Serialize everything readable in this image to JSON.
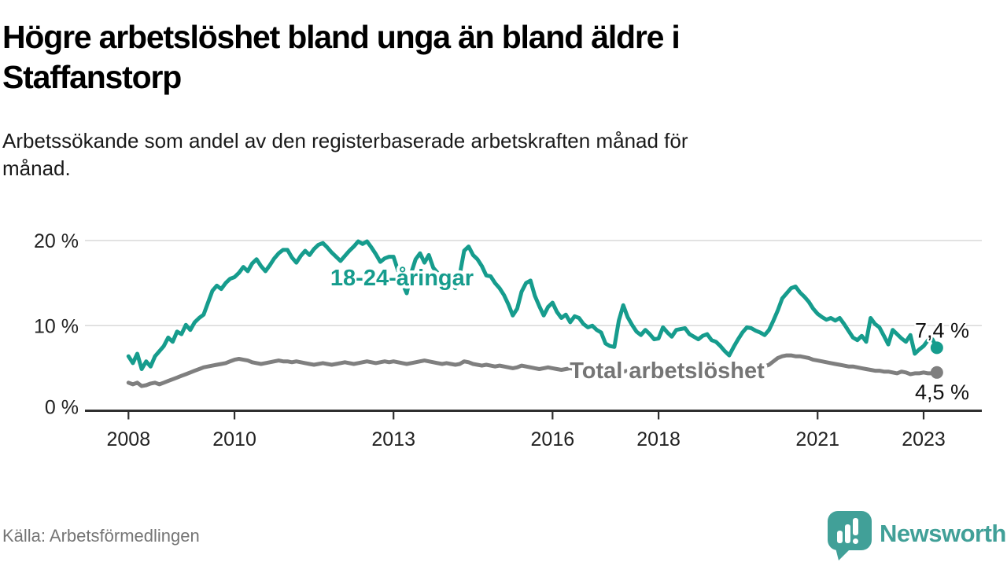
{
  "header": {
    "title": "Högre arbetslöshet bland unga än bland äldre i\nStaffanstorp",
    "subtitle": "Arbetssökande som andel av den registerbaserade arbetskraften månad för\nmånad."
  },
  "footer": {
    "source": "Källa: Arbetsförmedlingen",
    "brand": "Newsworthy",
    "brand_color": "#41a098"
  },
  "colors": {
    "young_line": "#169c8d",
    "total_line": "#7f7f7f",
    "total_label": "#757575",
    "grid": "#d9d9d9",
    "axis": "#2f2f2f",
    "tick_text": "#222222",
    "value_text": "#111111"
  },
  "chart_data": {
    "type": "line",
    "title": "Högre arbetslöshet bland unga än bland äldre i Staffanstorp",
    "xlabel": "",
    "ylabel": "Arbetssökande som andel av den registerbaserade arbetskraften",
    "x_unit": "month",
    "x_start": {
      "year": 2008,
      "month": 1
    },
    "x_end": {
      "year": 2023,
      "month": 4
    },
    "x_ticks": [
      {
        "year": 2008,
        "label": "2008"
      },
      {
        "year": 2010,
        "label": "2010"
      },
      {
        "year": 2013,
        "label": "2013"
      },
      {
        "year": 2016,
        "label": "2016"
      },
      {
        "year": 2018,
        "label": "2018"
      },
      {
        "year": 2021,
        "label": "2021"
      },
      {
        "year": 2023,
        "label": "2023"
      }
    ],
    "y_ticks": [
      {
        "value": 20,
        "label": "20 %"
      },
      {
        "value": 10,
        "label": "10 %"
      },
      {
        "value": 0,
        "label": "0 %"
      }
    ],
    "ylim": [
      0,
      21.5
    ],
    "grid": "horizontal",
    "legend_position": "inline-labels",
    "series": [
      {
        "id": "total",
        "name": "Total arbetslöshet",
        "color": "#7f7f7f",
        "label_color": "#757575",
        "end_label": "4,5 %",
        "end_value": 4.5,
        "values": [
          3.3,
          3.1,
          3.3,
          2.9,
          3.0,
          3.2,
          3.3,
          3.1,
          3.3,
          3.5,
          3.7,
          3.9,
          4.1,
          4.3,
          4.5,
          4.7,
          4.9,
          5.1,
          5.2,
          5.3,
          5.4,
          5.5,
          5.6,
          5.8,
          6.0,
          6.1,
          6.0,
          5.9,
          5.7,
          5.6,
          5.5,
          5.6,
          5.7,
          5.8,
          5.9,
          5.8,
          5.8,
          5.7,
          5.8,
          5.7,
          5.6,
          5.5,
          5.4,
          5.5,
          5.6,
          5.5,
          5.4,
          5.5,
          5.6,
          5.7,
          5.6,
          5.5,
          5.6,
          5.7,
          5.8,
          5.7,
          5.6,
          5.7,
          5.8,
          5.7,
          5.8,
          5.7,
          5.6,
          5.5,
          5.6,
          5.7,
          5.8,
          5.9,
          5.8,
          5.7,
          5.6,
          5.5,
          5.6,
          5.5,
          5.4,
          5.5,
          5.8,
          5.7,
          5.5,
          5.4,
          5.3,
          5.4,
          5.3,
          5.2,
          5.3,
          5.2,
          5.1,
          5.0,
          5.1,
          5.3,
          5.2,
          5.1,
          5.0,
          4.9,
          5.0,
          5.1,
          5.0,
          4.9,
          4.8,
          4.9,
          5.0,
          4.9,
          4.8,
          4.9,
          4.8,
          4.7,
          4.8,
          4.7,
          4.8,
          4.7,
          4.6,
          4.7,
          4.6,
          4.7,
          4.8,
          4.7,
          4.6,
          4.7,
          4.6,
          4.7,
          4.6,
          4.7,
          4.6,
          4.5,
          4.6,
          4.7,
          4.6,
          4.5,
          4.6,
          4.5,
          4.6,
          4.5,
          4.5,
          4.4,
          4.5,
          4.6,
          4.7,
          4.6,
          4.7,
          4.8,
          4.7,
          4.8,
          4.9,
          5.0,
          5.2,
          5.4,
          5.8,
          6.2,
          6.4,
          6.5,
          6.5,
          6.4,
          6.4,
          6.3,
          6.2,
          6.0,
          5.9,
          5.8,
          5.7,
          5.6,
          5.5,
          5.4,
          5.3,
          5.2,
          5.2,
          5.1,
          5.0,
          4.9,
          4.8,
          4.7,
          4.7,
          4.6,
          4.6,
          4.5,
          4.4,
          4.6,
          4.5,
          4.3,
          4.4,
          4.4,
          4.5,
          4.4,
          4.4,
          4.5
        ]
      },
      {
        "id": "young",
        "name": "18-24-åringar",
        "color": "#169c8d",
        "label_color": "#169c8d",
        "end_label": "7,4 %",
        "end_value": 7.4,
        "values": [
          6.4,
          5.6,
          6.7,
          4.9,
          5.8,
          5.2,
          6.4,
          7.0,
          7.6,
          8.6,
          8.1,
          9.3,
          9.0,
          10.1,
          9.5,
          10.4,
          10.9,
          11.3,
          12.7,
          14.1,
          14.7,
          14.3,
          15.0,
          15.5,
          15.7,
          16.2,
          16.9,
          16.4,
          17.3,
          17.8,
          17.0,
          16.4,
          17.1,
          17.9,
          18.5,
          18.9,
          18.9,
          18.0,
          17.4,
          18.2,
          18.8,
          18.3,
          19.0,
          19.5,
          19.7,
          19.2,
          18.6,
          18.1,
          17.6,
          18.2,
          18.8,
          19.3,
          19.9,
          19.6,
          19.9,
          19.2,
          18.4,
          17.5,
          17.9,
          18.1,
          18.1,
          16.5,
          15.0,
          13.8,
          16.2,
          17.8,
          18.5,
          17.4,
          18.3,
          16.8,
          16.2,
          15.8,
          15.2,
          14.8,
          14.4,
          16.0,
          18.8,
          19.3,
          18.3,
          17.8,
          17.0,
          15.9,
          15.8,
          15.0,
          14.4,
          13.6,
          12.5,
          11.2,
          12.0,
          14.0,
          15.0,
          15.3,
          13.5,
          12.3,
          11.2,
          12.2,
          12.7,
          11.6,
          10.9,
          11.3,
          10.4,
          11.1,
          10.9,
          10.2,
          9.8,
          10.0,
          9.5,
          9.2,
          7.9,
          7.6,
          7.5,
          10.6,
          12.4,
          11.0,
          10.1,
          9.3,
          8.9,
          9.5,
          9.0,
          8.4,
          8.5,
          9.8,
          9.2,
          8.7,
          9.5,
          9.6,
          9.7,
          9.0,
          8.7,
          8.4,
          8.8,
          9.0,
          8.3,
          8.1,
          7.6,
          7.0,
          6.5,
          7.5,
          8.4,
          9.2,
          9.8,
          9.7,
          9.4,
          9.2,
          8.9,
          9.5,
          10.6,
          11.8,
          13.2,
          13.8,
          14.4,
          14.6,
          13.9,
          13.4,
          12.8,
          12.0,
          11.4,
          11.0,
          10.7,
          10.9,
          10.6,
          10.9,
          10.2,
          9.4,
          8.6,
          8.3,
          8.8,
          8.1,
          10.9,
          10.2,
          9.8,
          8.8,
          7.8,
          9.5,
          9.0,
          8.5,
          8.1,
          8.9,
          6.7,
          7.2,
          7.6,
          8.3,
          8.4,
          7.4
        ]
      }
    ]
  }
}
